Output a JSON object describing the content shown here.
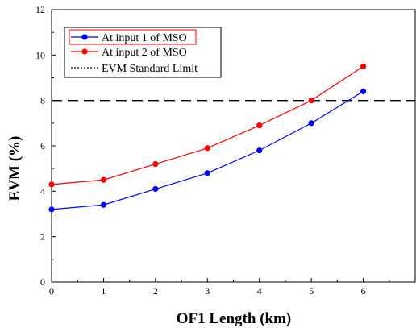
{
  "chart_data": {
    "type": "line",
    "title": "",
    "xlabel": "OF1 Length (km)",
    "ylabel": "EVM (%)",
    "xlim": [
      0,
      7
    ],
    "ylim": [
      0,
      12
    ],
    "x_ticks": [
      "0",
      "1",
      "2",
      "3",
      "4",
      "5",
      "6"
    ],
    "y_ticks": [
      "0",
      "2",
      "4",
      "6",
      "8",
      "10",
      "12"
    ],
    "grid": false,
    "legend_position": "top-left",
    "x": [
      0,
      1,
      2,
      3,
      4,
      5,
      6
    ],
    "series": [
      {
        "name": "At input 1 of MSO",
        "color": "#0000ff",
        "values": [
          3.2,
          3.4,
          4.1,
          4.8,
          5.8,
          7.0,
          8.4
        ]
      },
      {
        "name": "At input 2 of MSO",
        "color": "#ff0000",
        "values": [
          4.3,
          4.5,
          5.2,
          5.9,
          6.9,
          8.0,
          9.5
        ]
      }
    ],
    "reference_line": {
      "name": "EVM Standard Limit",
      "value": 8,
      "style": "dashed",
      "color": "#000000"
    }
  }
}
